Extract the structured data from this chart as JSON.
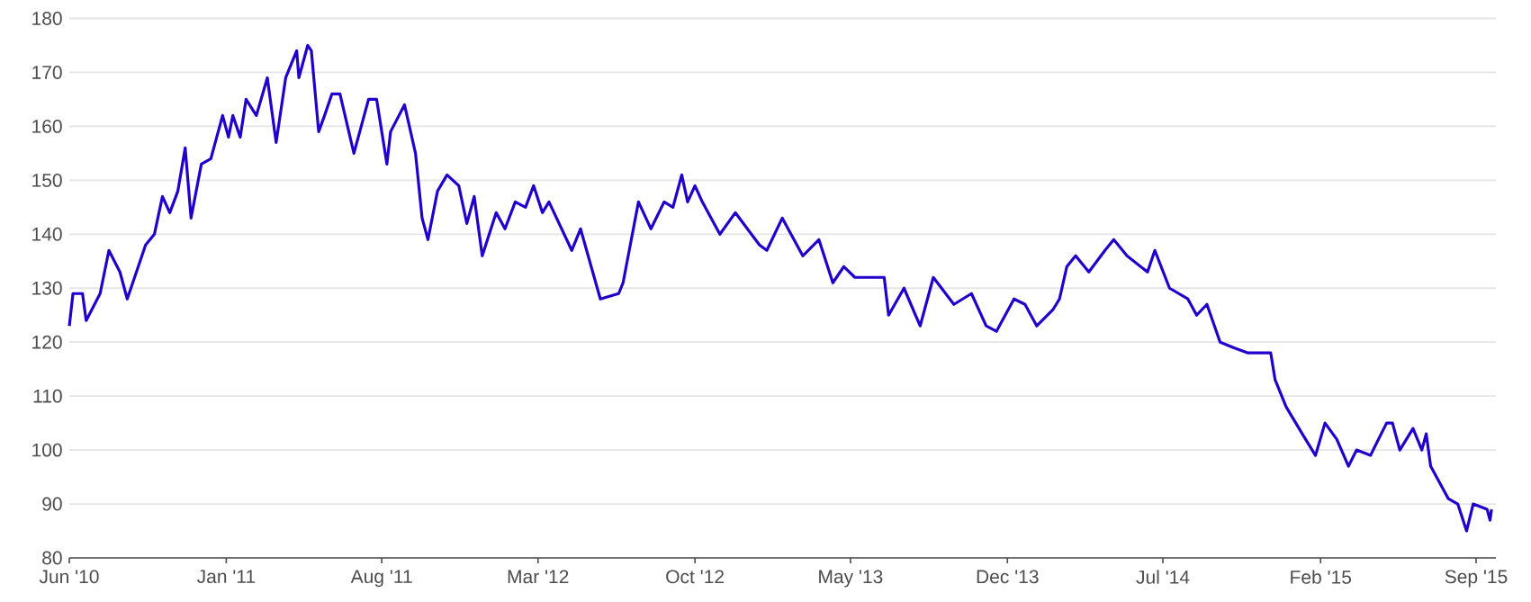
{
  "chart_data": {
    "type": "line",
    "x": [
      "2010-06-01",
      "2010-06-06",
      "2010-06-19",
      "2010-06-24",
      "2010-07-13",
      "2010-07-25",
      "2010-08-09",
      "2010-08-19",
      "2010-09-13",
      "2010-09-25",
      "2010-10-06",
      "2010-10-16",
      "2010-10-27",
      "2010-11-06",
      "2010-11-14",
      "2010-11-28",
      "2010-12-11",
      "2010-12-27",
      "2011-01-04",
      "2011-01-10",
      "2011-01-20",
      "2011-01-28",
      "2011-02-11",
      "2011-02-26",
      "2011-03-10",
      "2011-03-23",
      "2011-04-07",
      "2011-04-10",
      "2011-04-22",
      "2011-04-27",
      "2011-05-07",
      "2011-05-15",
      "2011-05-25",
      "2011-06-05",
      "2011-06-24",
      "2011-07-14",
      "2011-07-25",
      "2011-08-08",
      "2011-08-13",
      "2011-09-01",
      "2011-09-16",
      "2011-09-25",
      "2011-10-03",
      "2011-10-16",
      "2011-10-29",
      "2011-11-14",
      "2011-11-25",
      "2011-12-05",
      "2011-12-16",
      "2012-01-04",
      "2012-01-16",
      "2012-01-30",
      "2012-02-13",
      "2012-02-24",
      "2012-03-07",
      "2012-03-16",
      "2012-04-16",
      "2012-04-28",
      "2012-05-25",
      "2012-06-19",
      "2012-06-25",
      "2012-07-16",
      "2012-08-02",
      "2012-08-20",
      "2012-09-01",
      "2012-09-13",
      "2012-09-21",
      "2012-10-01",
      "2012-10-11",
      "2012-11-04",
      "2012-11-25",
      "2012-12-28",
      "2013-01-07",
      "2013-01-28",
      "2013-02-25",
      "2013-03-19",
      "2013-04-07",
      "2013-04-22",
      "2013-05-07",
      "2013-06-16",
      "2013-06-22",
      "2013-07-13",
      "2013-08-04",
      "2013-08-22",
      "2013-09-19",
      "2013-10-13",
      "2013-11-02",
      "2013-11-16",
      "2013-12-10",
      "2013-12-25",
      "2014-01-10",
      "2014-02-01",
      "2014-02-10",
      "2014-02-20",
      "2014-03-04",
      "2014-03-22",
      "2014-04-13",
      "2014-04-25",
      "2014-05-13",
      "2014-06-10",
      "2014-06-20",
      "2014-07-10",
      "2014-08-04",
      "2014-08-16",
      "2014-08-30",
      "2014-09-17",
      "2014-10-05",
      "2014-10-25",
      "2014-11-25",
      "2014-12-01",
      "2014-12-16",
      "2015-01-07",
      "2015-01-25",
      "2015-02-07",
      "2015-02-23",
      "2015-03-11",
      "2015-03-22",
      "2015-04-10",
      "2015-05-02",
      "2015-05-10",
      "2015-05-20",
      "2015-06-07",
      "2015-06-19",
      "2015-06-25",
      "2015-07-01",
      "2015-07-25",
      "2015-08-07",
      "2015-08-19",
      "2015-08-28",
      "2015-09-16",
      "2015-09-20",
      "2015-09-22"
    ],
    "series": [
      {
        "color": "#2200cc",
        "values": [
          123,
          129,
          129,
          124,
          129,
          137,
          133,
          128,
          138,
          140,
          147,
          144,
          148,
          156,
          143,
          153,
          154,
          162,
          158,
          162,
          158,
          165,
          162,
          169,
          157,
          169,
          174,
          169,
          175,
          174,
          159,
          162,
          166,
          166,
          155,
          165,
          165,
          153,
          159,
          164,
          155,
          143,
          139,
          148,
          151,
          149,
          142,
          147,
          136,
          144,
          141,
          146,
          145,
          149,
          144,
          146,
          137,
          141,
          128,
          129,
          131,
          146,
          141,
          146,
          145,
          151,
          146,
          149,
          146,
          140,
          144,
          138,
          137,
          143,
          136,
          139,
          131,
          134,
          132,
          132,
          125,
          130,
          123,
          132,
          127,
          129,
          123,
          122,
          128,
          127,
          123,
          126,
          128,
          134,
          136,
          133,
          137,
          139,
          136,
          133,
          137,
          130,
          128,
          125,
          127,
          120,
          119,
          118,
          118,
          113,
          108,
          103,
          99,
          105,
          102,
          97,
          100,
          99,
          105,
          105,
          100,
          104,
          100,
          103,
          97,
          91,
          90,
          85,
          90,
          89,
          87,
          89
        ]
      }
    ],
    "xlim": [
      "2010-06-01",
      "2015-09-28"
    ],
    "xticks": [
      {
        "value": "2010-06",
        "label": "Jun '10"
      },
      {
        "value": "2011-01",
        "label": "Jan '11"
      },
      {
        "value": "2011-08",
        "label": "Aug '11"
      },
      {
        "value": "2012-03",
        "label": "Mar '12"
      },
      {
        "value": "2012-10",
        "label": "Oct '12"
      },
      {
        "value": "2013-05",
        "label": "May '13"
      },
      {
        "value": "2013-12",
        "label": "Dec '13"
      },
      {
        "value": "2014-07",
        "label": "Jul '14"
      },
      {
        "value": "2015-02",
        "label": "Feb '15"
      },
      {
        "value": "2015-09",
        "label": "Sep '15"
      }
    ],
    "ylim": [
      80,
      180
    ],
    "yticks": [
      80,
      90,
      100,
      110,
      120,
      130,
      140,
      150,
      160,
      170,
      180
    ],
    "grid": "y",
    "marker": "none",
    "line_style": "solid",
    "legend": false
  }
}
